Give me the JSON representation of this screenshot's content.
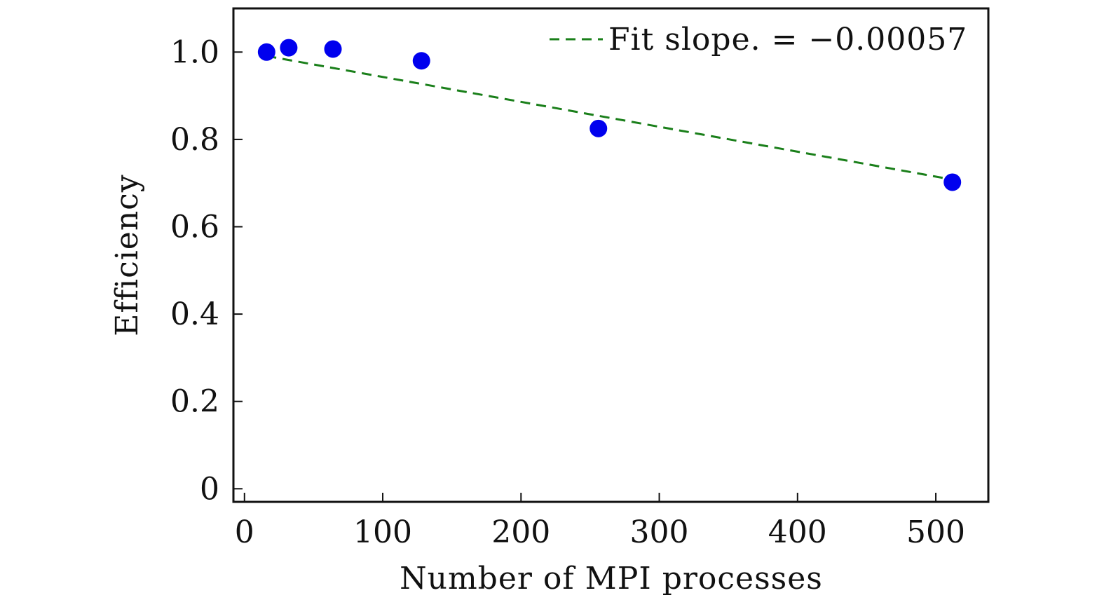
{
  "chart_data": {
    "type": "scatter",
    "title": "",
    "xlabel": "Number of MPI processes",
    "ylabel": "Efficiency",
    "xlim": [
      -8,
      538
    ],
    "ylim": [
      -0.03,
      1.1
    ],
    "xticks": [
      0,
      100,
      200,
      300,
      400,
      500
    ],
    "xtick_labels": [
      "0",
      "100",
      "200",
      "300",
      "400",
      "500"
    ],
    "yticks": [
      0,
      0.2,
      0.4,
      0.6,
      0.8,
      1.0
    ],
    "ytick_labels": [
      "0",
      "0.2",
      "0.4",
      "0.6",
      "0.8",
      "1.0"
    ],
    "grid": false,
    "legend_position": "top-right",
    "series": [
      {
        "name": "Efficiency",
        "kind": "scatter",
        "color": "#0000ee",
        "x": [
          16,
          32,
          64,
          128,
          256,
          512
        ],
        "y": [
          1.0,
          1.01,
          1.007,
          0.98,
          0.825,
          0.702
        ]
      },
      {
        "name": "Fit slope. = −0.00057",
        "kind": "line",
        "style": "dashed",
        "color": "#1a7f1a",
        "x": [
          16,
          512
        ],
        "y": [
          0.991,
          0.708
        ]
      }
    ],
    "legend": {
      "label": "Fit slope. = −0.00057"
    }
  }
}
